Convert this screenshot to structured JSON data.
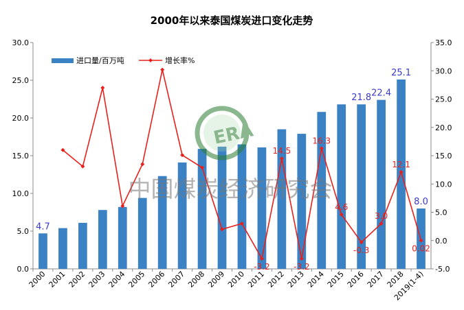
{
  "chart_data": {
    "type": "bar",
    "title": "2000年以来泰国煤炭进口变化走势",
    "categories": [
      "2000",
      "2001",
      "2002",
      "2003",
      "2004",
      "2005",
      "2006",
      "2007",
      "2008",
      "2009",
      "2010",
      "2011",
      "2012",
      "2013",
      "2014",
      "2015",
      "2016",
      "2017",
      "2018",
      "2019(1-4)"
    ],
    "series": [
      {
        "name": "进口量/百万吨",
        "type": "bar",
        "axis": "left",
        "color": "#3b82c4",
        "values": [
          4.7,
          5.4,
          6.1,
          7.8,
          8.2,
          9.4,
          12.3,
          14.1,
          15.9,
          16.2,
          16.5,
          16.1,
          18.5,
          17.9,
          20.8,
          21.8,
          21.8,
          22.4,
          25.1,
          8.0
        ],
        "labeled_values": [
          {
            "index": 0,
            "text": "4.7"
          },
          {
            "index": 16,
            "text": "21.8"
          },
          {
            "index": 17,
            "text": "22.4"
          },
          {
            "index": 18,
            "text": "25.1"
          },
          {
            "index": 19,
            "text": "8.0"
          }
        ],
        "label_color": "#3a3acf"
      },
      {
        "name": "增长率%",
        "type": "line",
        "axis": "right",
        "color": "#e8201c",
        "values": [
          null,
          16.0,
          13.1,
          27.0,
          6.1,
          13.5,
          30.2,
          15.1,
          12.9,
          2.0,
          3.0,
          -3.2,
          14.5,
          -3.2,
          16.3,
          4.6,
          -0.3,
          3.0,
          12.1,
          0.02
        ],
        "labeled_values": [
          {
            "index": 11,
            "text": "-3.2"
          },
          {
            "index": 12,
            "text": "14.5"
          },
          {
            "index": 13,
            "text": "-3.2"
          },
          {
            "index": 14,
            "text": "16.3"
          },
          {
            "index": 15,
            "text": "4.6"
          },
          {
            "index": 16,
            "text": "-0.3"
          },
          {
            "index": 17,
            "text": "3.0"
          },
          {
            "index": 18,
            "text": "12.1"
          },
          {
            "index": 19,
            "text": "0.02"
          }
        ],
        "label_color": "#e8201c"
      }
    ],
    "y_left": {
      "min": 0,
      "max": 30,
      "step": 5,
      "tick_labels": [
        "0.0",
        "5.0",
        "10.0",
        "15.0",
        "20.0",
        "25.0",
        "30.0"
      ]
    },
    "y_right": {
      "min": -5,
      "max": 35,
      "step": 5,
      "tick_labels": [
        "-5.0",
        "0.0",
        "5.0",
        "10.0",
        "15.0",
        "20.0",
        "25.0",
        "30.0",
        "35.0"
      ]
    },
    "legend_position": "top-left",
    "grid": false
  },
  "watermark": {
    "logo_text": "ERA",
    "text": "中国煤炭经济研究会"
  }
}
